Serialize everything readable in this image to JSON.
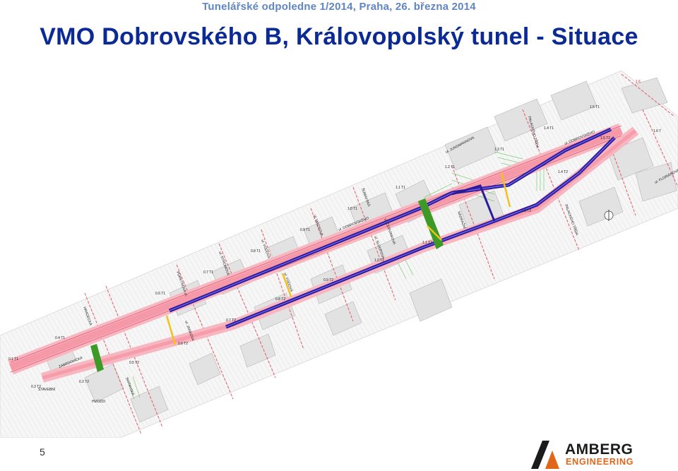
{
  "header": {
    "subtitle": "Tunelářské odpoledne 1/2014, Praha,  26. března 2014",
    "title": "VMO Dobrovského B,  Královopolský tunel - Situace"
  },
  "plan": {
    "street_labels": {
      "jungmannova": "ul. JUNGMANNOVA",
      "palackeho_top": "PALACKÉHO TŘÍDA",
      "dobrovskeho_top": "ul. DOBROVSKÉHO",
      "dobrovskeho_mid": "ul. DOBROVSKÉHO",
      "sumavska": "ŠUMAVSKÁ",
      "zabrdovicka": "ZÁBRDOVICKÁ",
      "hradecka": "HRADECKÁ",
      "svitavska": "SVITAVSKÁ",
      "sloupova": "ul. SLOUPOVA",
      "nadrazni": "NÁDRAŽNÍ",
      "palackeho_bottom": "PALACKÉHO TŘÍDA",
      "floriánova": "ul. FLORIÁNOVA",
      "vodova_a": "ul. VODOVÁ",
      "vodova_b": "ul. VODOVÁ",
      "mackova": "ul. MACKOVA",
      "purkynova": "PURKYŇOVA ul.",
      "stromova": "ul. STROMOVÁ",
      "janekova": "ul. JANKOVA",
      "cervinkova": "ul. ČERVINKOVA",
      "hvozdi": "HVOZDI",
      "stavebni": "STAVEBNÍ"
    },
    "station_labels": {
      "s1": "1.6",
      "s2": "1.5 T1",
      "s3": "1.4 T1",
      "s4": "1.3 T1",
      "s5": "1.2 T1",
      "s6": "1.1 T1",
      "s7": "1.0 T1",
      "s8": "0.9 T1",
      "s9": "0.8 T1",
      "s10": "0.7 T1",
      "s11": "0.6 T1",
      "s12": "0.4 T1",
      "s13": "0.1 T1",
      "s14": "1.6 T",
      "s15": "1.5 T2",
      "s16": "1.3 T2",
      "s17": "1.1 T2",
      "s18": "1.0 T2",
      "s19": "0.9 T2",
      "s20": "0.8 T2",
      "s21": "0.7 T2",
      "s22": "0.6 T2",
      "s23": "0.5 T2",
      "s24": "0.3 T2",
      "s25": "0.2 T2",
      "s26": "1.4 T2"
    }
  },
  "footer": {
    "page_number": "5",
    "logo_word1": "AMBERG",
    "logo_word2": "ENGINEERING"
  },
  "colors": {
    "title": "#0b2a96",
    "subtitle": "#5f86c0",
    "tunnel": "#2a1b9c",
    "road": "#f48c9c",
    "green_shaft": "#3d9a27",
    "yellow_marker": "#f2c21a",
    "logo_orange": "#e2661a"
  }
}
